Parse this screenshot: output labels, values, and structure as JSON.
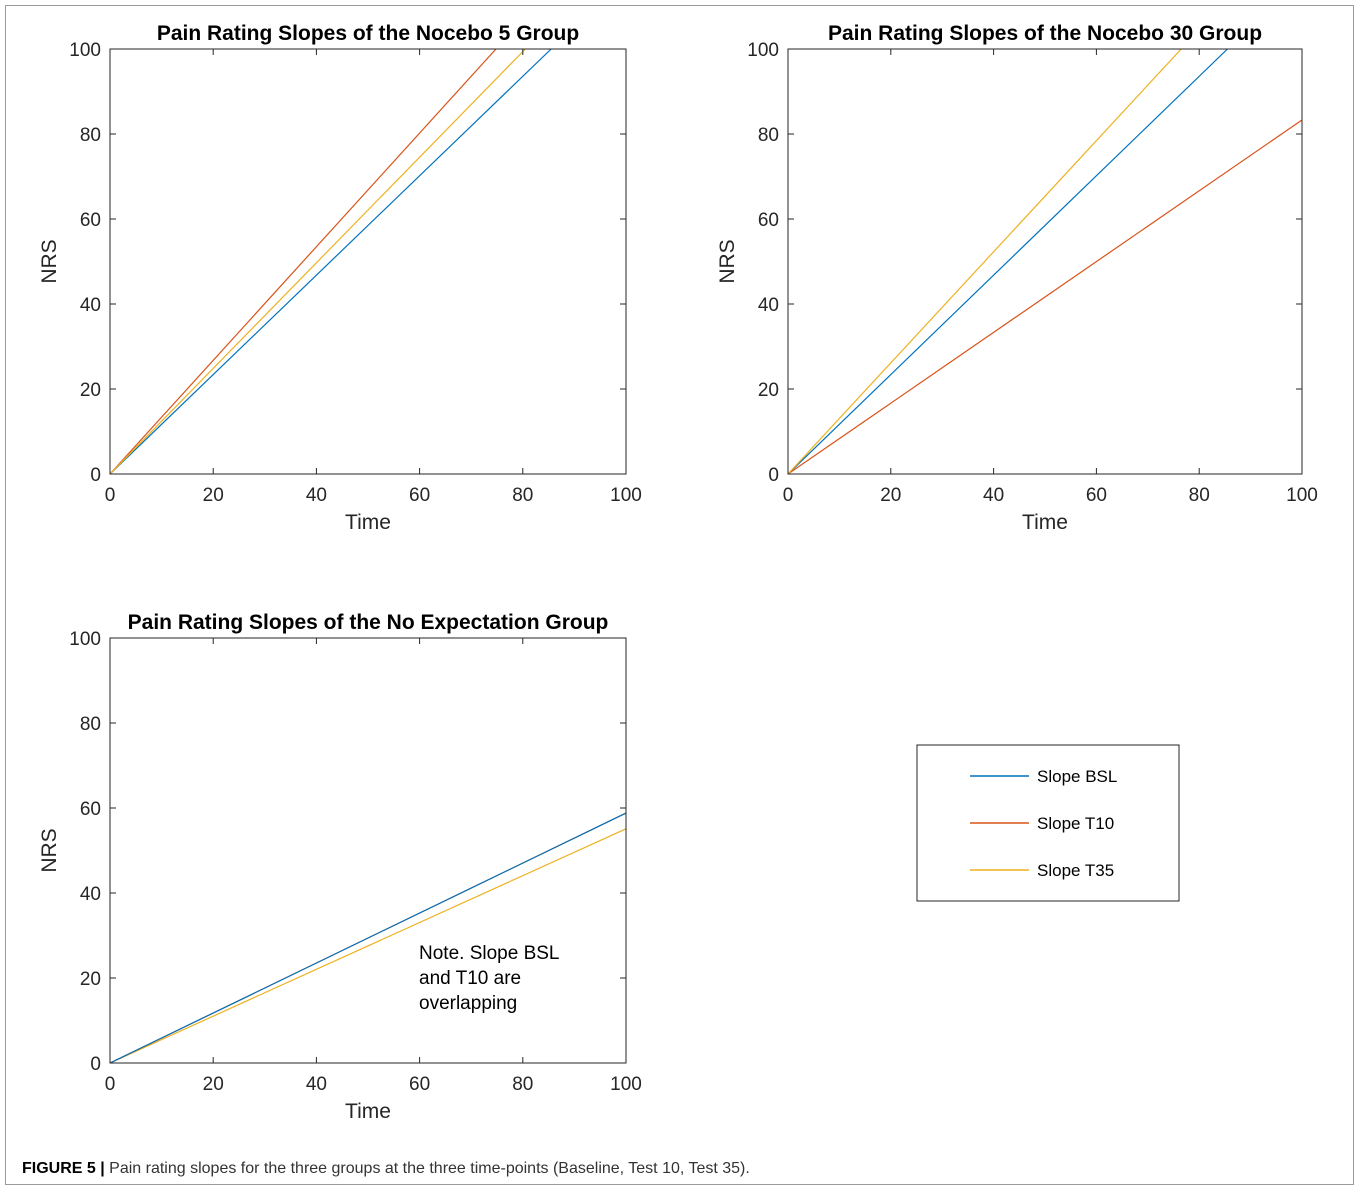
{
  "charts": {
    "colors": {
      "bsl": "#0072BD",
      "t10": "#D95319",
      "t35": "#EDB120"
    },
    "chart_data": [
      {
        "type": "line",
        "title": "Pain Rating Slopes of the Nocebo 5 Group",
        "xlabel": "Time",
        "ylabel": "NRS",
        "xlim": [
          0,
          100
        ],
        "ylim": [
          0,
          100
        ],
        "xticks": [
          "0",
          "20",
          "40",
          "60",
          "80",
          "100"
        ],
        "yticks": [
          "0",
          "20",
          "40",
          "60",
          "80",
          "100"
        ],
        "grid": false,
        "series": [
          {
            "key": "bsl",
            "x": [
              0,
              85.5
            ],
            "y": [
              0,
              100
            ]
          },
          {
            "key": "t10",
            "x": [
              0,
              74.8
            ],
            "y": [
              0,
              100
            ]
          },
          {
            "key": "t35",
            "x": [
              0,
              80.5
            ],
            "y": [
              0,
              100
            ]
          }
        ]
      },
      {
        "type": "line",
        "title": "Pain Rating Slopes of the Nocebo 30 Group",
        "xlabel": "Time",
        "ylabel": "NRS",
        "xlim": [
          0,
          100
        ],
        "ylim": [
          0,
          100
        ],
        "xticks": [
          "0",
          "20",
          "40",
          "60",
          "80",
          "100"
        ],
        "yticks": [
          "0",
          "20",
          "40",
          "60",
          "80",
          "100"
        ],
        "grid": false,
        "series": [
          {
            "key": "bsl",
            "x": [
              0,
              85.5
            ],
            "y": [
              0,
              100
            ]
          },
          {
            "key": "t10",
            "x": [
              0,
              100
            ],
            "y": [
              0,
              83.3
            ]
          },
          {
            "key": "t35",
            "x": [
              0,
              76.5
            ],
            "y": [
              0,
              100
            ]
          }
        ]
      },
      {
        "type": "line",
        "title": "Pain Rating Slopes of the No Expectation Group",
        "xlabel": "Time",
        "ylabel": "NRS",
        "xlim": [
          0,
          100
        ],
        "ylim": [
          0,
          100
        ],
        "xticks": [
          "0",
          "20",
          "40",
          "60",
          "80",
          "100"
        ],
        "yticks": [
          "0",
          "20",
          "40",
          "60",
          "80",
          "100"
        ],
        "grid": false,
        "annotation": [
          "Note. Slope BSL",
          "and T10 are",
          "overlapping"
        ],
        "series": [
          {
            "key": "t35",
            "x": [
              0,
              100
            ],
            "y": [
              0,
              55.1
            ]
          },
          {
            "key": "t10",
            "x": [
              0,
              100
            ],
            "y": [
              0,
              58.8
            ]
          },
          {
            "key": "bsl",
            "x": [
              0,
              100
            ],
            "y": [
              0,
              58.8
            ]
          }
        ]
      }
    ],
    "legend": {
      "placement": "lower-right panel",
      "entries": [
        {
          "key": "bsl",
          "label": "Slope BSL"
        },
        {
          "key": "t10",
          "label": "Slope T10"
        },
        {
          "key": "t35",
          "label": "Slope T35"
        }
      ]
    }
  },
  "caption": {
    "label": "FIGURE 5 |",
    "text": " Pain rating slopes for the three groups at the three time-points (Baseline, Test 10, Test 35)."
  }
}
